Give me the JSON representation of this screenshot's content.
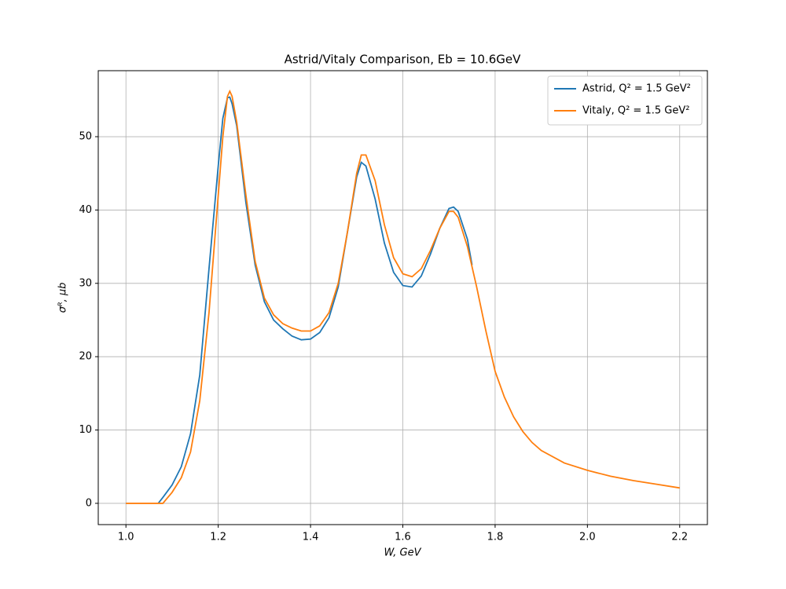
{
  "chart_data": {
    "type": "line",
    "title": "Astrid/Vitaly Comparison, Eb = 10.6GeV",
    "x_label": "W, GeV",
    "y_label": "σᴿ, μb",
    "xlim": [
      0.94,
      2.26
    ],
    "ylim": [
      -2.9,
      59.0
    ],
    "xticks": [
      {
        "value": 1.0,
        "label": "1.0"
      },
      1.2,
      1.4,
      1.6,
      1.8,
      {
        "value": 2.0,
        "label": "2.0"
      },
      2.2
    ],
    "yticks": [
      0,
      10,
      20,
      30,
      40,
      50
    ],
    "grid": true,
    "legend": "upper right",
    "series": [
      {
        "name": "Astrid, Q² = 1.5 GeV²",
        "color": "#1f77b4",
        "x": [
          1.07,
          1.08,
          1.1,
          1.12,
          1.14,
          1.16,
          1.18,
          1.2,
          1.21,
          1.22,
          1.225,
          1.23,
          1.24,
          1.26,
          1.28,
          1.3,
          1.32,
          1.34,
          1.36,
          1.38,
          1.4,
          1.42,
          1.44,
          1.46,
          1.48,
          1.5,
          1.51,
          1.52,
          1.54,
          1.56,
          1.58,
          1.6,
          1.62,
          1.64,
          1.66,
          1.68,
          1.7,
          1.71,
          1.72,
          1.74,
          1.75
        ],
        "values": [
          0,
          0.8,
          2.5,
          5,
          9.5,
          17.5,
          32,
          46,
          52.5,
          55.3,
          55.4,
          54.5,
          51.5,
          41,
          32.5,
          27.5,
          25,
          23.8,
          22.8,
          22.3,
          22.4,
          23.3,
          25.3,
          29.5,
          37,
          44.5,
          46.5,
          46,
          41.5,
          35.5,
          31.5,
          29.7,
          29.5,
          31,
          34,
          37.5,
          40.2,
          40.4,
          39.8,
          36,
          32.5
        ]
      },
      {
        "name": "Vitaly, Q² = 1.5 GeV²",
        "color": "#ff7f0e",
        "x": [
          1.0,
          1.05,
          1.08,
          1.1,
          1.12,
          1.14,
          1.16,
          1.18,
          1.2,
          1.21,
          1.22,
          1.225,
          1.23,
          1.24,
          1.26,
          1.28,
          1.3,
          1.32,
          1.34,
          1.36,
          1.38,
          1.4,
          1.42,
          1.44,
          1.46,
          1.48,
          1.5,
          1.51,
          1.52,
          1.54,
          1.56,
          1.58,
          1.6,
          1.62,
          1.64,
          1.66,
          1.68,
          1.7,
          1.71,
          1.72,
          1.74,
          1.76,
          1.78,
          1.8,
          1.82,
          1.84,
          1.86,
          1.88,
          1.9,
          1.95,
          2.0,
          2.05,
          2.1,
          2.15,
          2.2
        ],
        "values": [
          0,
          0,
          0,
          1.5,
          3.5,
          7,
          14,
          26,
          42,
          50,
          55.5,
          56.2,
          55.5,
          52,
          42,
          33,
          28,
          25.7,
          24.5,
          23.9,
          23.5,
          23.5,
          24.2,
          26,
          30,
          37,
          45,
          47.5,
          47.5,
          44,
          38,
          33.5,
          31.3,
          30.9,
          32,
          34.5,
          37.5,
          39.8,
          39.8,
          39,
          35,
          29.5,
          23.5,
          18,
          14.5,
          11.8,
          9.8,
          8.3,
          7.2,
          5.5,
          4.5,
          3.7,
          3.1,
          2.6,
          2.1
        ]
      }
    ]
  }
}
